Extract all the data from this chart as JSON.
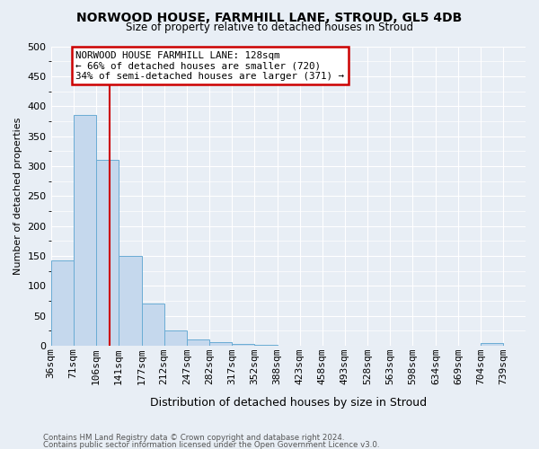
{
  "title1": "NORWOOD HOUSE, FARMHILL LANE, STROUD, GL5 4DB",
  "title2": "Size of property relative to detached houses in Stroud",
  "xlabel": "Distribution of detached houses by size in Stroud",
  "ylabel": "Number of detached properties",
  "bin_labels": [
    "36sqm",
    "71sqm",
    "106sqm",
    "141sqm",
    "177sqm",
    "212sqm",
    "247sqm",
    "282sqm",
    "317sqm",
    "352sqm",
    "388sqm",
    "423sqm",
    "458sqm",
    "493sqm",
    "528sqm",
    "563sqm",
    "598sqm",
    "634sqm",
    "669sqm",
    "704sqm",
    "739sqm"
  ],
  "bin_edges": [
    36,
    71,
    106,
    141,
    177,
    212,
    247,
    282,
    317,
    352,
    388,
    423,
    458,
    493,
    528,
    563,
    598,
    634,
    669,
    704,
    739
  ],
  "bar_heights": [
    143,
    385,
    310,
    150,
    70,
    25,
    10,
    6,
    3,
    1,
    0,
    0,
    0,
    0,
    0,
    0,
    0,
    0,
    0,
    5,
    0
  ],
  "bar_color": "#c5d8ed",
  "bar_edge_color": "#6aacd4",
  "property_value": 128,
  "annotation_line1": "NORWOOD HOUSE FARMHILL LANE: 128sqm",
  "annotation_line2": "← 66% of detached houses are smaller (720)",
  "annotation_line3": "34% of semi-detached houses are larger (371) →",
  "annotation_box_color": "#ffffff",
  "annotation_box_edge": "#cc0000",
  "red_line_color": "#cc0000",
  "ylim": [
    0,
    500
  ],
  "bg_color": "#e8eef5",
  "plot_bg_color": "#e8eef5",
  "grid_color": "#ffffff",
  "footnote1": "Contains HM Land Registry data © Crown copyright and database right 2024.",
  "footnote2": "Contains public sector information licensed under the Open Government Licence v3.0."
}
